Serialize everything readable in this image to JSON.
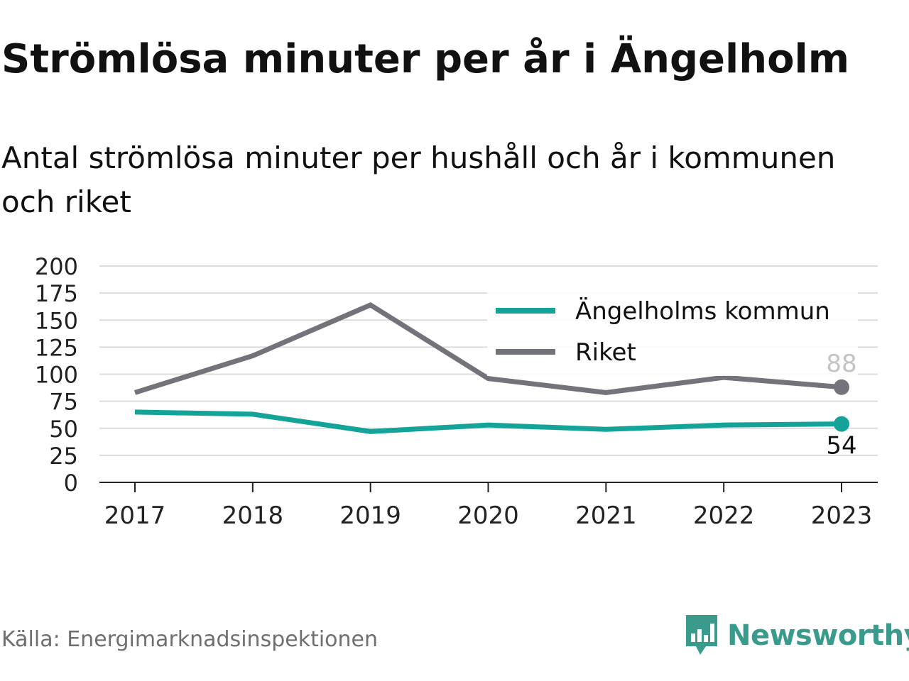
{
  "title": "Strömlösa minuter per år i Ängelholm",
  "subtitle": "Antal strömlösa minuter per hushåll och år i kommunen och riket",
  "source": "Källa: Energimarknadsinspektionen",
  "brand": {
    "name": "Newsworthy",
    "color": "#3a9a8c",
    "icon": "bar-chart-speech-bubble-icon"
  },
  "chart_data": {
    "type": "line",
    "title": "Strömlösa minuter per år i Ängelholm",
    "subtitle": "Antal strömlösa minuter per hushåll och år i kommunen och riket",
    "x": [
      "2017",
      "2018",
      "2019",
      "2020",
      "2021",
      "2022",
      "2023"
    ],
    "ylim": [
      0,
      200
    ],
    "yticks": [
      "0",
      "25",
      "50",
      "75",
      "100",
      "125",
      "150",
      "175",
      "200"
    ],
    "grid": true,
    "legend_position": "top-right",
    "series": [
      {
        "name": "Ängelholms kommun",
        "color": "#13a398",
        "values": [
          65,
          63,
          47,
          53,
          49,
          53,
          54
        ],
        "end_label": "54"
      },
      {
        "name": "Riket",
        "color": "#73737b",
        "values": [
          83,
          117,
          164,
          96,
          83,
          97,
          88
        ],
        "end_label": "88"
      }
    ]
  }
}
